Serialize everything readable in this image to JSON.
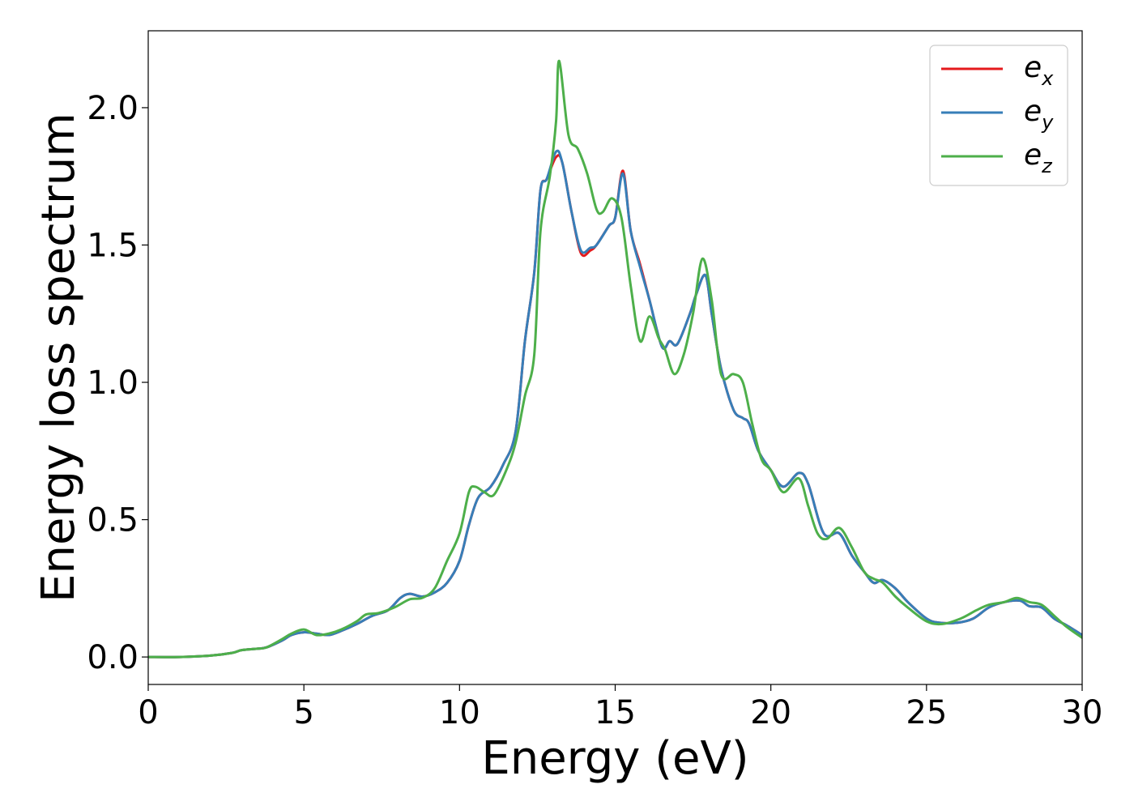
{
  "chart_data": {
    "type": "line",
    "xlabel": "Energy (eV)",
    "ylabel": "Energy loss spectrum",
    "xlim": [
      0,
      30
    ],
    "ylim": [
      -0.1,
      2.28
    ],
    "xticks": [
      0,
      5,
      10,
      15,
      20,
      25,
      30
    ],
    "xtick_labels": [
      "0",
      "5",
      "10",
      "15",
      "20",
      "25",
      "30"
    ],
    "yticks": [
      0.0,
      0.5,
      1.0,
      1.5,
      2.0
    ],
    "ytick_labels": [
      "0.0",
      "0.5",
      "1.0",
      "1.5",
      "2.0"
    ],
    "grid": false,
    "legend_position": "top-right",
    "series": [
      {
        "name": "e",
        "subscript": "x",
        "color": "#e41a1c",
        "points": [
          [
            0,
            0.0
          ],
          [
            1,
            0.0
          ],
          [
            2,
            0.005
          ],
          [
            2.7,
            0.015
          ],
          [
            3,
            0.025
          ],
          [
            3.5,
            0.03
          ],
          [
            3.8,
            0.035
          ],
          [
            4.3,
            0.06
          ],
          [
            4.6,
            0.08
          ],
          [
            5,
            0.09
          ],
          [
            5.4,
            0.085
          ],
          [
            5.8,
            0.08
          ],
          [
            6.2,
            0.095
          ],
          [
            6.7,
            0.12
          ],
          [
            7.2,
            0.15
          ],
          [
            7.7,
            0.17
          ],
          [
            8.1,
            0.215
          ],
          [
            8.4,
            0.23
          ],
          [
            8.8,
            0.22
          ],
          [
            9.2,
            0.235
          ],
          [
            9.6,
            0.27
          ],
          [
            10,
            0.35
          ],
          [
            10.3,
            0.48
          ],
          [
            10.6,
            0.58
          ],
          [
            11,
            0.62
          ],
          [
            11.4,
            0.7
          ],
          [
            11.8,
            0.82
          ],
          [
            12.1,
            1.15
          ],
          [
            12.4,
            1.4
          ],
          [
            12.6,
            1.7
          ],
          [
            12.8,
            1.74
          ],
          [
            13.1,
            1.82
          ],
          [
            13.3,
            1.8
          ],
          [
            13.6,
            1.62
          ],
          [
            13.9,
            1.47
          ],
          [
            14.2,
            1.48
          ],
          [
            14.4,
            1.5
          ],
          [
            14.8,
            1.57
          ],
          [
            15,
            1.6
          ],
          [
            15.25,
            1.77
          ],
          [
            15.5,
            1.55
          ],
          [
            15.8,
            1.43
          ],
          [
            16.1,
            1.3
          ],
          [
            16.5,
            1.13
          ],
          [
            16.75,
            1.15
          ],
          [
            17,
            1.14
          ],
          [
            17.4,
            1.25
          ],
          [
            17.6,
            1.32
          ],
          [
            17.9,
            1.39
          ],
          [
            18.1,
            1.25
          ],
          [
            18.4,
            1.05
          ],
          [
            18.8,
            0.9
          ],
          [
            19.1,
            0.87
          ],
          [
            19.3,
            0.85
          ],
          [
            19.6,
            0.75
          ],
          [
            20,
            0.68
          ],
          [
            20.4,
            0.62
          ],
          [
            20.9,
            0.67
          ],
          [
            21.2,
            0.63
          ],
          [
            21.7,
            0.45
          ],
          [
            22.2,
            0.45
          ],
          [
            22.6,
            0.37
          ],
          [
            23,
            0.31
          ],
          [
            23.3,
            0.27
          ],
          [
            23.6,
            0.28
          ],
          [
            24,
            0.25
          ],
          [
            24.4,
            0.2
          ],
          [
            25,
            0.14
          ],
          [
            25.4,
            0.125
          ],
          [
            26,
            0.125
          ],
          [
            26.5,
            0.14
          ],
          [
            27,
            0.18
          ],
          [
            27.5,
            0.2
          ],
          [
            28,
            0.205
          ],
          [
            28.3,
            0.185
          ],
          [
            28.7,
            0.18
          ],
          [
            29.1,
            0.14
          ],
          [
            29.5,
            0.115
          ],
          [
            30,
            0.08
          ]
        ]
      },
      {
        "name": "e",
        "subscript": "y",
        "color": "#377eb8",
        "points": [
          [
            0,
            0.0
          ],
          [
            1,
            0.0
          ],
          [
            2,
            0.005
          ],
          [
            2.7,
            0.015
          ],
          [
            3,
            0.025
          ],
          [
            3.5,
            0.03
          ],
          [
            3.8,
            0.035
          ],
          [
            4.3,
            0.06
          ],
          [
            4.6,
            0.08
          ],
          [
            5,
            0.09
          ],
          [
            5.4,
            0.085
          ],
          [
            5.8,
            0.08
          ],
          [
            6.2,
            0.095
          ],
          [
            6.7,
            0.12
          ],
          [
            7.2,
            0.15
          ],
          [
            7.7,
            0.17
          ],
          [
            8.1,
            0.215
          ],
          [
            8.4,
            0.23
          ],
          [
            8.8,
            0.22
          ],
          [
            9.2,
            0.235
          ],
          [
            9.6,
            0.27
          ],
          [
            10,
            0.35
          ],
          [
            10.3,
            0.48
          ],
          [
            10.6,
            0.58
          ],
          [
            11,
            0.62
          ],
          [
            11.4,
            0.7
          ],
          [
            11.8,
            0.82
          ],
          [
            12.1,
            1.15
          ],
          [
            12.4,
            1.4
          ],
          [
            12.6,
            1.7
          ],
          [
            12.8,
            1.74
          ],
          [
            13.1,
            1.84
          ],
          [
            13.3,
            1.8
          ],
          [
            13.6,
            1.62
          ],
          [
            13.9,
            1.48
          ],
          [
            14.2,
            1.49
          ],
          [
            14.4,
            1.5
          ],
          [
            14.8,
            1.57
          ],
          [
            15,
            1.6
          ],
          [
            15.25,
            1.76
          ],
          [
            15.5,
            1.55
          ],
          [
            15.8,
            1.42
          ],
          [
            16.1,
            1.3
          ],
          [
            16.5,
            1.13
          ],
          [
            16.75,
            1.15
          ],
          [
            17,
            1.14
          ],
          [
            17.4,
            1.25
          ],
          [
            17.6,
            1.32
          ],
          [
            17.9,
            1.39
          ],
          [
            18.1,
            1.25
          ],
          [
            18.4,
            1.05
          ],
          [
            18.8,
            0.9
          ],
          [
            19.1,
            0.87
          ],
          [
            19.3,
            0.85
          ],
          [
            19.6,
            0.75
          ],
          [
            20,
            0.68
          ],
          [
            20.4,
            0.62
          ],
          [
            20.9,
            0.67
          ],
          [
            21.2,
            0.63
          ],
          [
            21.7,
            0.45
          ],
          [
            22.2,
            0.45
          ],
          [
            22.6,
            0.37
          ],
          [
            23,
            0.31
          ],
          [
            23.3,
            0.27
          ],
          [
            23.6,
            0.28
          ],
          [
            24,
            0.25
          ],
          [
            24.4,
            0.2
          ],
          [
            25,
            0.14
          ],
          [
            25.4,
            0.125
          ],
          [
            26,
            0.125
          ],
          [
            26.5,
            0.14
          ],
          [
            27,
            0.18
          ],
          [
            27.5,
            0.2
          ],
          [
            28,
            0.205
          ],
          [
            28.3,
            0.185
          ],
          [
            28.7,
            0.18
          ],
          [
            29.1,
            0.14
          ],
          [
            29.5,
            0.115
          ],
          [
            30,
            0.08
          ]
        ]
      },
      {
        "name": "e",
        "subscript": "z",
        "color": "#4daf4a",
        "points": [
          [
            0,
            0.0
          ],
          [
            1,
            0.0
          ],
          [
            2,
            0.005
          ],
          [
            2.7,
            0.015
          ],
          [
            3,
            0.025
          ],
          [
            3.5,
            0.03
          ],
          [
            3.8,
            0.035
          ],
          [
            4.3,
            0.065
          ],
          [
            4.6,
            0.085
          ],
          [
            5,
            0.1
          ],
          [
            5.4,
            0.08
          ],
          [
            5.8,
            0.085
          ],
          [
            6.2,
            0.1
          ],
          [
            6.7,
            0.13
          ],
          [
            7,
            0.155
          ],
          [
            7.4,
            0.16
          ],
          [
            7.9,
            0.18
          ],
          [
            8.4,
            0.21
          ],
          [
            8.8,
            0.215
          ],
          [
            9.2,
            0.25
          ],
          [
            9.6,
            0.35
          ],
          [
            10,
            0.45
          ],
          [
            10.3,
            0.6
          ],
          [
            10.5,
            0.62
          ],
          [
            10.8,
            0.6
          ],
          [
            11.1,
            0.59
          ],
          [
            11.5,
            0.68
          ],
          [
            11.8,
            0.78
          ],
          [
            12.1,
            0.95
          ],
          [
            12.4,
            1.1
          ],
          [
            12.6,
            1.55
          ],
          [
            12.9,
            1.75
          ],
          [
            13.1,
            1.95
          ],
          [
            13.2,
            2.17
          ],
          [
            13.5,
            1.9
          ],
          [
            13.8,
            1.85
          ],
          [
            14.1,
            1.76
          ],
          [
            14.4,
            1.63
          ],
          [
            14.6,
            1.62
          ],
          [
            14.9,
            1.67
          ],
          [
            15.2,
            1.6
          ],
          [
            15.5,
            1.35
          ],
          [
            15.8,
            1.15
          ],
          [
            16.1,
            1.24
          ],
          [
            16.4,
            1.16
          ],
          [
            16.6,
            1.12
          ],
          [
            16.9,
            1.03
          ],
          [
            17.2,
            1.1
          ],
          [
            17.5,
            1.25
          ],
          [
            17.8,
            1.45
          ],
          [
            18.1,
            1.3
          ],
          [
            18.4,
            1.03
          ],
          [
            18.8,
            1.03
          ],
          [
            19.1,
            1.0
          ],
          [
            19.4,
            0.85
          ],
          [
            19.7,
            0.72
          ],
          [
            20,
            0.68
          ],
          [
            20.4,
            0.6
          ],
          [
            20.9,
            0.65
          ],
          [
            21.2,
            0.55
          ],
          [
            21.5,
            0.45
          ],
          [
            21.8,
            0.43
          ],
          [
            22.2,
            0.47
          ],
          [
            22.6,
            0.4
          ],
          [
            23,
            0.31
          ],
          [
            23.3,
            0.285
          ],
          [
            23.6,
            0.27
          ],
          [
            24,
            0.22
          ],
          [
            24.4,
            0.18
          ],
          [
            25,
            0.13
          ],
          [
            25.5,
            0.12
          ],
          [
            26.1,
            0.14
          ],
          [
            26.6,
            0.17
          ],
          [
            27,
            0.19
          ],
          [
            27.5,
            0.2
          ],
          [
            27.9,
            0.215
          ],
          [
            28.3,
            0.2
          ],
          [
            28.7,
            0.19
          ],
          [
            29.1,
            0.15
          ],
          [
            29.5,
            0.11
          ],
          [
            30,
            0.07
          ]
        ]
      }
    ]
  }
}
